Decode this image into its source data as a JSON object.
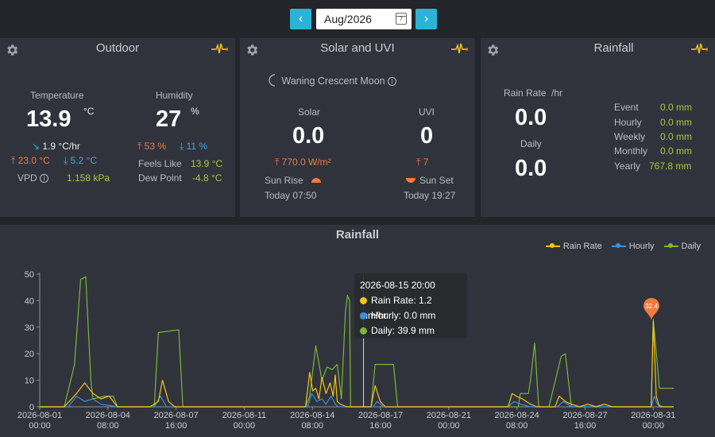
{
  "datebar": {
    "prev": "‹",
    "next": "›",
    "date": "Aug/2026",
    "cal_day": "7"
  },
  "outdoor": {
    "title": "Outdoor",
    "temp_label": "Temperature",
    "temp": "13.9",
    "temp_unit": "°C",
    "temp_rate": "1.9 °C/hr",
    "temp_high": "23.0 °C",
    "temp_low": "5.2 °C",
    "vpd_label": "VPD",
    "vpd": "1.158 kPa",
    "hum_label": "Humidity",
    "hum": "27",
    "hum_unit": "%",
    "hum_high": "53 %",
    "hum_low": "11 %",
    "feels_label": "Feels Like",
    "feels": "13.9 °C",
    "dew_label": "Dew Point",
    "dew": "-4.8 °C"
  },
  "solar": {
    "title": "Solar and UVI",
    "moon": "Waning Crescent Moon",
    "solar_label": "Solar",
    "solar": "0.0",
    "solar_max": "770.0 W/m²",
    "uvi_label": "UVI",
    "uvi": "0",
    "uvi_max": "7",
    "sunrise_label": "Sun Rise",
    "sunrise": "Today 07:50",
    "sunset_label": "Sun Set",
    "sunset": "Today 19:27"
  },
  "rain": {
    "title": "Rainfall",
    "rate_label": "Rain Rate",
    "rate_unit": "/hr",
    "rate": "0.0",
    "daily_label": "Daily",
    "daily": "0.0",
    "event_label": "Event",
    "event": "0.0 mm",
    "hourly_label": "Hourly",
    "hourly": "0.0 mm",
    "weekly_label": "Weekly",
    "weekly": "0.0 mm",
    "monthly_label": "Monthly",
    "monthly": "0.0 mm",
    "yearly_label": "Yearly",
    "yearly": "767.8 mm"
  },
  "colors": {
    "rate": "#f5c518",
    "hourly": "#3b8fe0",
    "daily": "#7ab63a",
    "accent": "#2bb3d6",
    "pin": "#f07b3f"
  },
  "tooltip": {
    "time": "2026-08-15 20:00",
    "rate": "Rain Rate: 1.2 mm/hr",
    "hourly": "Hourly: 0.0 mm",
    "daily": "Daily: 39.9 mm"
  },
  "pin_value": "32.4",
  "chart_data": {
    "type": "line",
    "title": "Rainfall",
    "ylim": [
      0,
      50
    ],
    "yticks": [
      0,
      10,
      20,
      30,
      40,
      50
    ],
    "xlim": [
      0,
      31
    ],
    "xticks": [
      {
        "pos": 0,
        "date": "2026-08-01",
        "time": "00:00"
      },
      {
        "pos": 3.333,
        "date": "2026-08-04",
        "time": "08:00"
      },
      {
        "pos": 6.667,
        "date": "2026-08-07",
        "time": "16:00"
      },
      {
        "pos": 10,
        "date": "2026-08-11",
        "time": "00:00"
      },
      {
        "pos": 13.333,
        "date": "2026-08-14",
        "time": "08:00"
      },
      {
        "pos": 16.667,
        "date": "2026-08-17",
        "time": "16:00"
      },
      {
        "pos": 20,
        "date": "2026-08-21",
        "time": "00:00"
      },
      {
        "pos": 23.333,
        "date": "2026-08-24",
        "time": "08:00"
      },
      {
        "pos": 26.667,
        "date": "2026-08-27",
        "time": "16:00"
      },
      {
        "pos": 30,
        "date": "2026-08-31",
        "time": "00:00"
      }
    ],
    "grid": false,
    "legend": "top-right",
    "series": [
      {
        "name": "Rain Rate",
        "color": "#f5c518",
        "x": [
          0,
          1.2,
          1.8,
          2.2,
          2.6,
          3.0,
          3.4,
          3.8,
          4.2,
          5.4,
          5.8,
          6.0,
          6.3,
          6.6,
          13.0,
          13.2,
          13.35,
          13.5,
          13.65,
          13.8,
          14.0,
          14.2,
          14.35,
          14.45,
          14.55,
          14.7,
          15.0,
          15.3,
          16.2,
          16.4,
          16.65,
          16.9,
          17.1,
          22.9,
          23.1,
          23.3,
          23.6,
          24.0,
          24.3,
          25.2,
          25.4,
          25.7,
          26.0,
          26.4,
          26.8,
          27.2,
          27.6,
          28.0,
          28.4,
          29.9,
          30.0,
          30.15,
          30.3,
          30.5,
          31
        ],
        "y": [
          0,
          0,
          5,
          9,
          5,
          3,
          4,
          0,
          0,
          0,
          2,
          10,
          2,
          0,
          0,
          13,
          6,
          7,
          3,
          11,
          5,
          9,
          4,
          12,
          2,
          1,
          0,
          0,
          0,
          8,
          2,
          0,
          0,
          0,
          5,
          4,
          3,
          1,
          0,
          0,
          4,
          2,
          1,
          0,
          1,
          0,
          1,
          0,
          0,
          0,
          32.4,
          4,
          0,
          0,
          0
        ]
      },
      {
        "name": "Hourly",
        "color": "#3b8fe0",
        "x": [
          0,
          1.4,
          1.8,
          2.2,
          2.6,
          3.0,
          3.8,
          5.6,
          5.9,
          6.2,
          13.1,
          13.3,
          13.55,
          13.8,
          14.0,
          14.25,
          14.45,
          14.6,
          15.0,
          16.3,
          16.5,
          16.8,
          22.9,
          23.2,
          23.5,
          24.0,
          25.3,
          25.6,
          26.0,
          26.8,
          29.9,
          30.05,
          30.2,
          30.5,
          31
        ],
        "y": [
          0,
          0,
          4,
          2,
          3,
          1,
          0,
          0,
          4,
          0,
          0,
          5,
          2,
          3,
          1,
          4,
          1,
          0,
          0,
          0,
          2,
          0,
          0,
          2,
          1,
          0,
          0,
          2,
          0,
          0,
          0,
          4,
          1,
          0,
          0
        ]
      },
      {
        "name": "Daily",
        "color": "#7ab63a",
        "x": [
          0,
          1.0,
          1.2,
          1.7,
          2.0,
          2.25,
          2.5,
          2.6,
          3.2,
          3.6,
          3.8,
          5.6,
          5.8,
          6.8,
          7.0,
          13.0,
          13.2,
          13.5,
          13.8,
          14.05,
          14.3,
          14.55,
          14.75,
          14.95,
          15.05,
          15.15,
          15.2,
          16.2,
          16.4,
          17.3,
          17.5,
          22.8,
          23.0,
          23.4,
          23.5,
          23.9,
          24.0,
          24.2,
          24.4,
          24.7,
          24.9,
          25.5,
          25.7,
          26.0,
          26.5,
          26.6,
          26.8,
          27.3,
          27.5,
          27.9,
          28.1,
          29.9,
          30.0,
          30.2,
          30.3,
          31
        ],
        "y": [
          0,
          0,
          0,
          16,
          48,
          49,
          10,
          3,
          4,
          4,
          0,
          0,
          28,
          29,
          0,
          0,
          4,
          23,
          10,
          15,
          14,
          16,
          3,
          36,
          42,
          40,
          0,
          0,
          16,
          16,
          0,
          0,
          0,
          0,
          5,
          5,
          10,
          24,
          0,
          0,
          0,
          19,
          20,
          0,
          0,
          0,
          0,
          0,
          0,
          0,
          0,
          0,
          33,
          16,
          7,
          7
        ]
      }
    ],
    "cursor_x": 15.833
  }
}
